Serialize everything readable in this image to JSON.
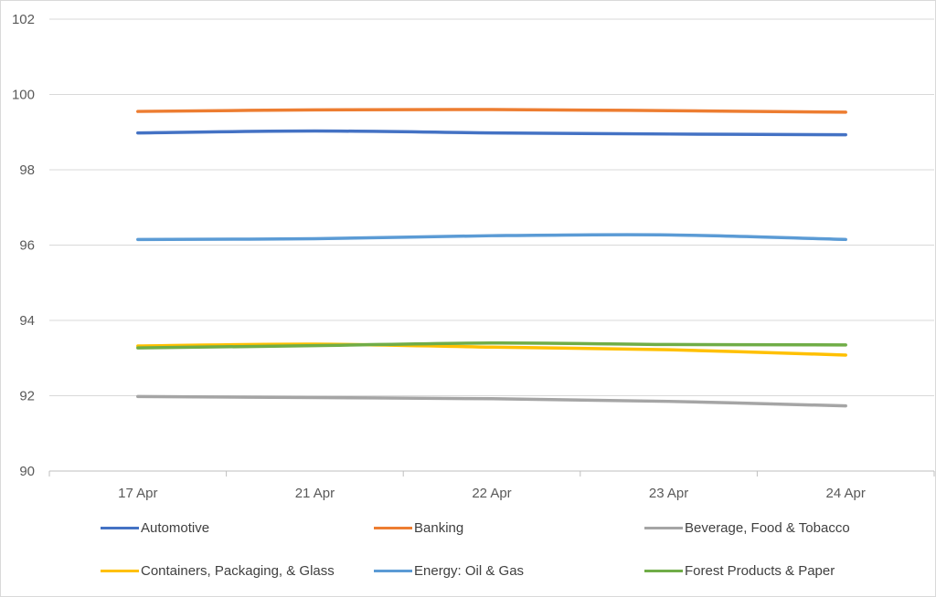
{
  "chart_data": {
    "type": "line",
    "title": "",
    "xlabel": "",
    "ylabel": "",
    "categories": [
      "17 Apr",
      "21 Apr",
      "22 Apr",
      "23 Apr",
      "24 Apr"
    ],
    "ylim": [
      90,
      102
    ],
    "yticks": [
      90,
      92,
      94,
      96,
      98,
      100,
      102
    ],
    "grid": "horizontal",
    "legend_position": "bottom",
    "series": [
      {
        "name": "Automotive",
        "color": "#4472c4",
        "values": [
          98.98,
          99.03,
          98.98,
          98.95,
          98.93
        ]
      },
      {
        "name": "Banking",
        "color": "#ed7d31",
        "values": [
          99.55,
          99.59,
          99.6,
          99.57,
          99.53
        ]
      },
      {
        "name": "Beverage, Food & Tobacco",
        "color": "#a5a5a5",
        "values": [
          91.98,
          91.95,
          91.92,
          91.85,
          91.73
        ]
      },
      {
        "name": "Containers, Packaging, & Glass",
        "color": "#ffc000",
        "values": [
          93.32,
          93.37,
          93.29,
          93.22,
          93.08
        ]
      },
      {
        "name": "Energy: Oil & Gas",
        "color": "#5b9bd5",
        "values": [
          96.15,
          96.17,
          96.25,
          96.27,
          96.15
        ]
      },
      {
        "name": "Forest Products & Paper",
        "color": "#70ad47",
        "values": [
          93.27,
          93.33,
          93.4,
          93.36,
          93.35
        ]
      }
    ]
  }
}
